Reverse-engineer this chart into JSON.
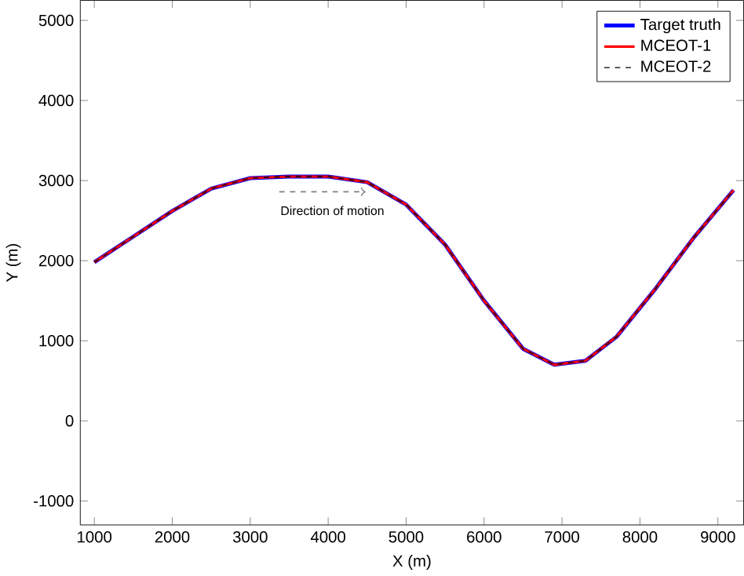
{
  "chart_data": {
    "type": "line",
    "xlabel": "X (m)",
    "ylabel": "Y (m)",
    "xlim": [
      820,
      9330
    ],
    "ylim": [
      -1300,
      5250
    ],
    "xticks": [
      1000,
      2000,
      3000,
      4000,
      5000,
      6000,
      7000,
      8000,
      9000
    ],
    "yticks": [
      -1000,
      0,
      1000,
      2000,
      3000,
      4000,
      5000
    ],
    "x": [
      1000,
      1500,
      2000,
      2500,
      3000,
      3500,
      4000,
      4500,
      5000,
      5500,
      6000,
      6500,
      6900,
      7300,
      7700,
      8200,
      8700,
      9200
    ],
    "series": [
      {
        "name": "Target truth",
        "color": "#0000ff",
        "line_style": "solid",
        "values": [
          1980,
          2300,
          2620,
          2900,
          3030,
          3050,
          3050,
          2980,
          2700,
          2200,
          1500,
          900,
          700,
          750,
          1050,
          1650,
          2300,
          2880
        ]
      },
      {
        "name": "MCEOT-1",
        "color": "#ff0000",
        "line_style": "solid",
        "values": [
          1980,
          2300,
          2620,
          2900,
          3030,
          3050,
          3050,
          2980,
          2700,
          2200,
          1500,
          900,
          700,
          750,
          1050,
          1650,
          2300,
          2880
        ]
      },
      {
        "name": "MCEOT-2",
        "color": "#000000",
        "line_style": "dashed",
        "values": [
          1980,
          2300,
          2620,
          2900,
          3030,
          3050,
          3050,
          2980,
          2700,
          2200,
          1500,
          900,
          700,
          750,
          1050,
          1650,
          2300,
          2880
        ]
      }
    ],
    "legend": "top right",
    "grid": false,
    "annotations": [
      "Direction of motion"
    ]
  }
}
